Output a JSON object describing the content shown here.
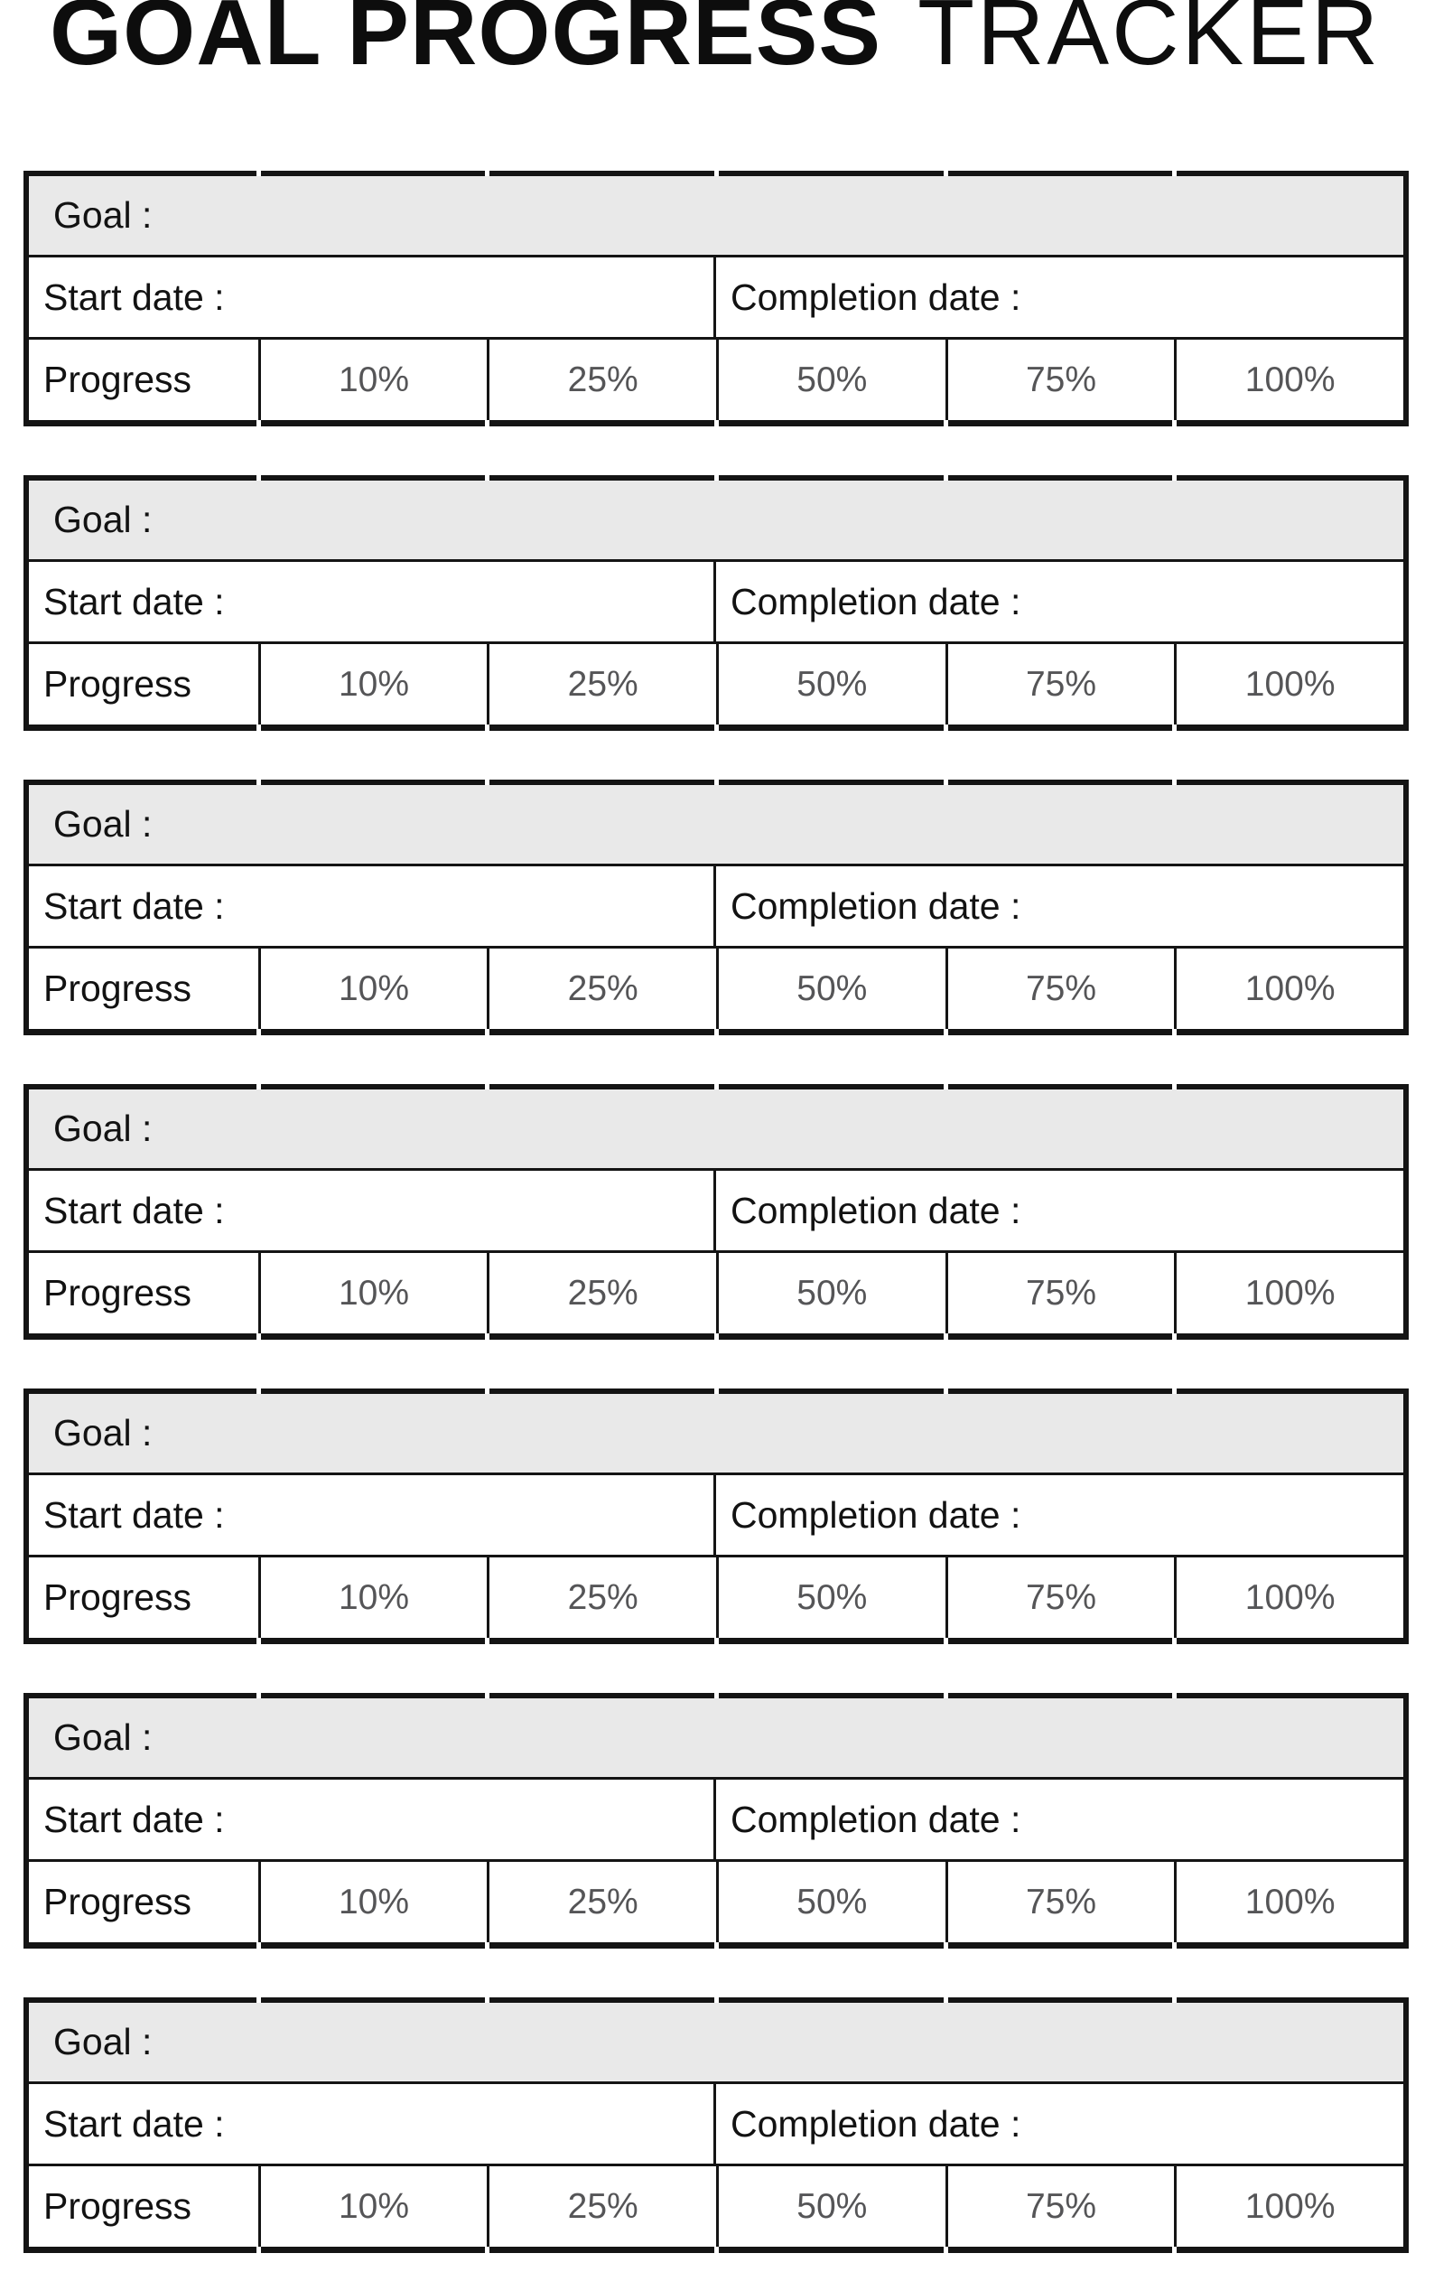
{
  "title": {
    "main": "GOAL PROGRESS",
    "secondary": "TRACKER"
  },
  "goal_block": {
    "goal_label": "Goal :",
    "start_date_label": "Start date :",
    "completion_date_label": "Completion date :",
    "progress_label": "Progress",
    "progress_levels": [
      "10%",
      "25%",
      "50%",
      "75%",
      "100%"
    ]
  },
  "goal_blocks_count": 7,
  "colors": {
    "goal_row_background": "#e9e9e9",
    "table_border": "#141414",
    "label_text": "#121212",
    "percent_text": "#555557"
  }
}
